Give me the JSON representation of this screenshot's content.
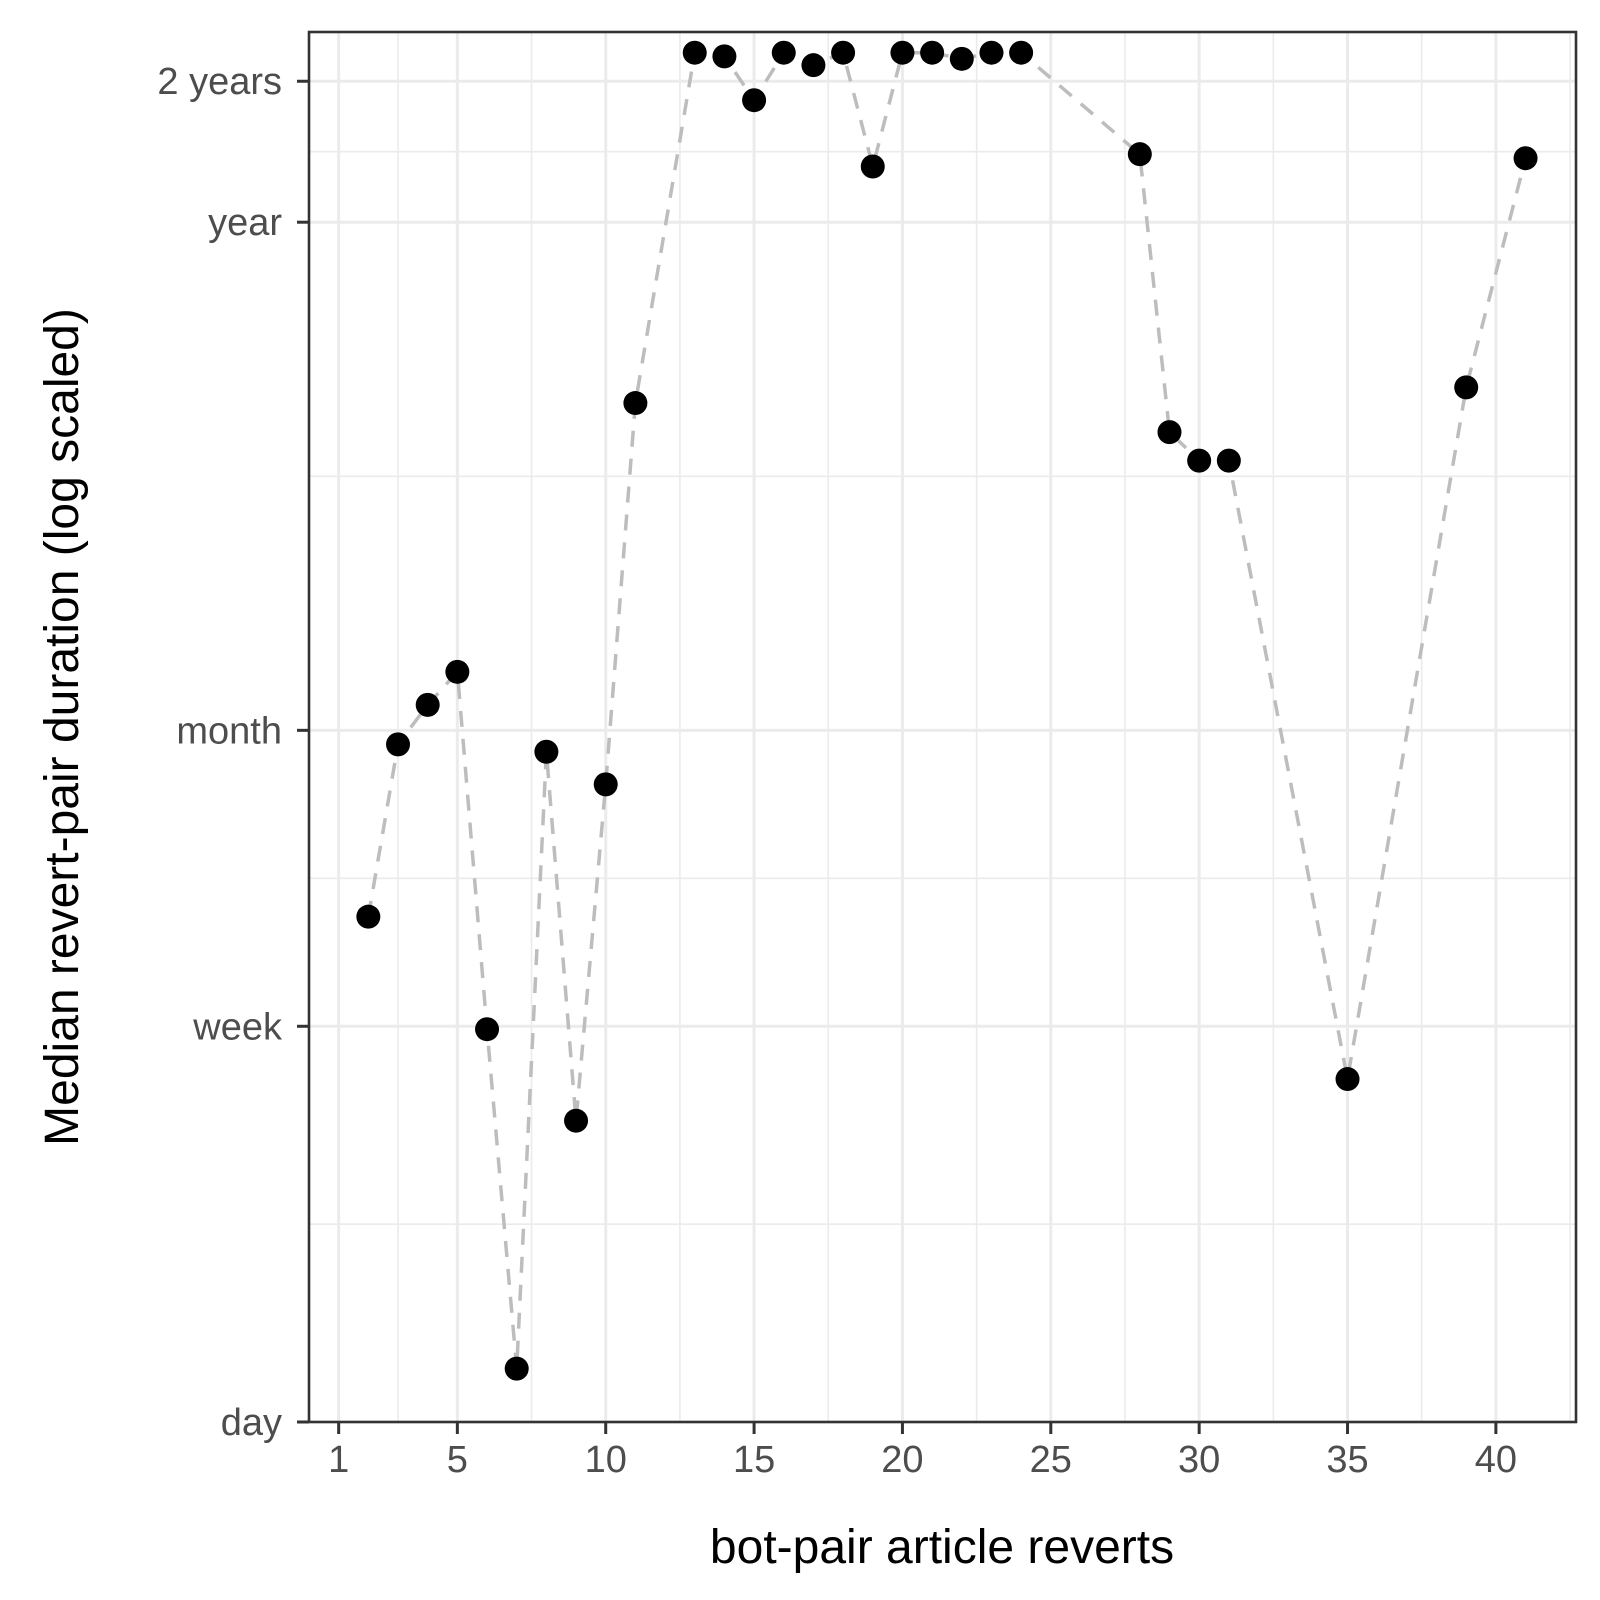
{
  "chart_data": {
    "type": "scatter",
    "xlabel": "bot-pair article reverts",
    "ylabel": "Median revert-pair duration (log scaled)",
    "xlim": [
      0,
      42.7
    ],
    "ylim_days": [
      1,
      930
    ],
    "y_scale": "log",
    "x_ticks": [
      1,
      5,
      10,
      15,
      20,
      25,
      30,
      35,
      40
    ],
    "y_ticks": [
      {
        "label": "day",
        "days": 1
      },
      {
        "label": "week",
        "days": 7
      },
      {
        "label": "month",
        "days": 30
      },
      {
        "label": "year",
        "days": 365
      },
      {
        "label": "2 years",
        "days": 730
      }
    ],
    "grid": true,
    "connecting_line": "dashed",
    "line_color": "#bdbdbd",
    "point_color": "#000000",
    "points": [
      {
        "x": 2,
        "days": 12
      },
      {
        "x": 3,
        "days": 28
      },
      {
        "x": 4,
        "days": 34
      },
      {
        "x": 5,
        "days": 40
      },
      {
        "x": 6,
        "days": 6.9
      },
      {
        "x": 7,
        "days": 1.3
      },
      {
        "x": 8,
        "days": 27
      },
      {
        "x": 9,
        "days": 4.4
      },
      {
        "x": 10,
        "days": 23
      },
      {
        "x": 11,
        "days": 150
      },
      {
        "x": 13,
        "days": 840
      },
      {
        "x": 14,
        "days": 825
      },
      {
        "x": 15,
        "days": 665
      },
      {
        "x": 16,
        "days": 840
      },
      {
        "x": 17,
        "days": 790
      },
      {
        "x": 18,
        "days": 840
      },
      {
        "x": 19,
        "days": 480
      },
      {
        "x": 20,
        "days": 840
      },
      {
        "x": 21,
        "days": 840
      },
      {
        "x": 22,
        "days": 815
      },
      {
        "x": 23,
        "days": 840
      },
      {
        "x": 24,
        "days": 840
      },
      {
        "x": 28,
        "days": 510
      },
      {
        "x": 29,
        "days": 130
      },
      {
        "x": 30,
        "days": 113
      },
      {
        "x": 31,
        "days": 113
      },
      {
        "x": 35,
        "days": 5.4
      },
      {
        "x": 39,
        "days": 162
      },
      {
        "x": 41,
        "days": 500
      }
    ]
  }
}
